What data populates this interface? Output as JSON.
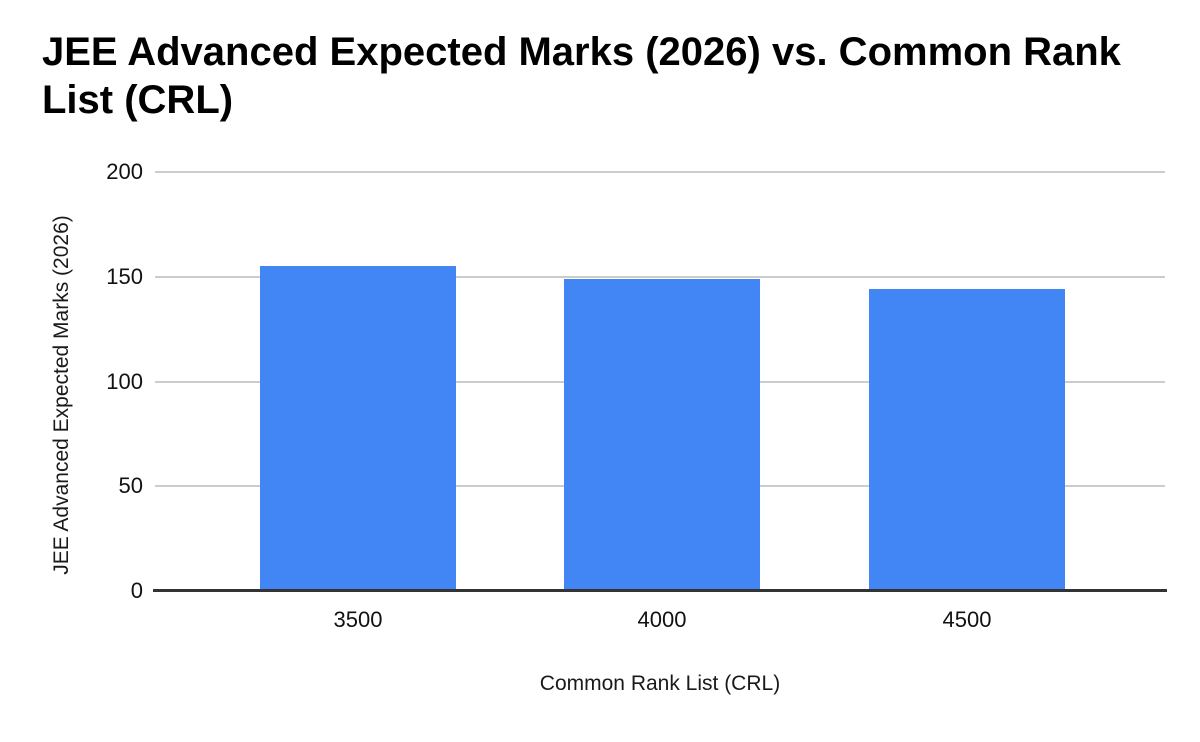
{
  "chart_data": {
    "type": "bar",
    "title": "JEE Advanced Expected Marks (2026) vs. Common Rank List (CRL)",
    "categories": [
      "3500",
      "4000",
      "4500"
    ],
    "values": [
      155,
      149,
      144
    ],
    "xlabel": "Common Rank List (CRL)",
    "ylabel": "JEE Advanced Expected Marks (2026)",
    "ylim": [
      0,
      200
    ],
    "yticks": [
      0,
      50,
      100,
      150,
      200
    ],
    "legend": "none",
    "grid": true,
    "bar_color": "#4285f4",
    "gridline_color": "#cccccc",
    "axis_line_color": "#333333",
    "background_color": "#ffffff"
  }
}
